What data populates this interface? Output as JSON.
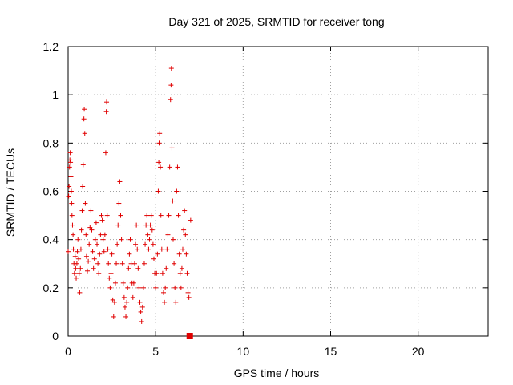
{
  "chart_data": {
    "type": "scatter",
    "title": "Day 321 of 2025, SRMTID for receiver tong",
    "xlabel": "GPS time / hours",
    "ylabel": "SRMTID / TECUs",
    "xlim": [
      0,
      24
    ],
    "ylim": [
      0,
      1.2
    ],
    "xticks": [
      0,
      5,
      10,
      15,
      20
    ],
    "yticks": [
      0,
      0.2,
      0.4,
      0.6,
      0.8,
      1,
      1.2
    ],
    "xtick_labels": [
      "0",
      "5",
      "10",
      "15",
      "20"
    ],
    "ytick_labels": [
      "0",
      "0.2",
      "0.4",
      "0.6",
      "0.8",
      "1",
      "1.2"
    ],
    "grid": true,
    "marker": "+",
    "color": "#e00000",
    "end_marker": {
      "x": 6.95,
      "y": 0.0,
      "shape": "square"
    },
    "series": [
      {
        "name": "SRMTID",
        "points": [
          [
            0.0,
            0.35
          ],
          [
            0.03,
            0.58
          ],
          [
            0.05,
            0.62
          ],
          [
            0.08,
            0.7
          ],
          [
            0.1,
            0.73
          ],
          [
            0.12,
            0.76
          ],
          [
            0.14,
            0.72
          ],
          [
            0.16,
            0.66
          ],
          [
            0.18,
            0.6
          ],
          [
            0.2,
            0.55
          ],
          [
            0.22,
            0.5
          ],
          [
            0.25,
            0.46
          ],
          [
            0.28,
            0.42
          ],
          [
            0.3,
            0.36
          ],
          [
            0.33,
            0.3
          ],
          [
            0.36,
            0.26
          ],
          [
            0.4,
            0.33
          ],
          [
            0.43,
            0.28
          ],
          [
            0.46,
            0.24
          ],
          [
            0.5,
            0.3
          ],
          [
            0.53,
            0.35
          ],
          [
            0.56,
            0.4
          ],
          [
            0.6,
            0.32
          ],
          [
            0.63,
            0.26
          ],
          [
            0.66,
            0.18
          ],
          [
            0.7,
            0.28
          ],
          [
            0.73,
            0.36
          ],
          [
            0.76,
            0.44
          ],
          [
            0.8,
            0.52
          ],
          [
            0.83,
            0.62
          ],
          [
            0.86,
            0.71
          ],
          [
            0.9,
            0.9
          ],
          [
            0.92,
            0.94
          ],
          [
            0.95,
            0.84
          ],
          [
            0.98,
            0.55
          ],
          [
            1.02,
            0.42
          ],
          [
            1.05,
            0.33
          ],
          [
            1.1,
            0.27
          ],
          [
            1.15,
            0.31
          ],
          [
            1.2,
            0.38
          ],
          [
            1.25,
            0.45
          ],
          [
            1.3,
            0.52
          ],
          [
            1.35,
            0.44
          ],
          [
            1.4,
            0.35
          ],
          [
            1.45,
            0.28
          ],
          [
            1.5,
            0.32
          ],
          [
            1.55,
            0.4
          ],
          [
            1.6,
            0.47
          ],
          [
            1.65,
            0.38
          ],
          [
            1.7,
            0.3
          ],
          [
            1.75,
            0.26
          ],
          [
            1.8,
            0.34
          ],
          [
            1.85,
            0.42
          ],
          [
            1.9,
            0.5
          ],
          [
            1.95,
            0.48
          ],
          [
            2.0,
            0.4
          ],
          [
            2.05,
            0.35
          ],
          [
            2.1,
            0.42
          ],
          [
            2.15,
            0.76
          ],
          [
            2.18,
            0.93
          ],
          [
            2.2,
            0.97
          ],
          [
            2.23,
            0.5
          ],
          [
            2.27,
            0.36
          ],
          [
            2.3,
            0.3
          ],
          [
            2.35,
            0.24
          ],
          [
            2.4,
            0.2
          ],
          [
            2.45,
            0.26
          ],
          [
            2.5,
            0.34
          ],
          [
            2.55,
            0.15
          ],
          [
            2.6,
            0.08
          ],
          [
            2.65,
            0.14
          ],
          [
            2.7,
            0.22
          ],
          [
            2.75,
            0.3
          ],
          [
            2.8,
            0.38
          ],
          [
            2.85,
            0.46
          ],
          [
            2.9,
            0.55
          ],
          [
            2.95,
            0.64
          ],
          [
            3.0,
            0.5
          ],
          [
            3.05,
            0.4
          ],
          [
            3.1,
            0.3
          ],
          [
            3.15,
            0.22
          ],
          [
            3.2,
            0.16
          ],
          [
            3.25,
            0.12
          ],
          [
            3.3,
            0.08
          ],
          [
            3.35,
            0.14
          ],
          [
            3.4,
            0.2
          ],
          [
            3.45,
            0.28
          ],
          [
            3.5,
            0.34
          ],
          [
            3.55,
            0.4
          ],
          [
            3.6,
            0.3
          ],
          [
            3.65,
            0.22
          ],
          [
            3.7,
            0.16
          ],
          [
            3.75,
            0.22
          ],
          [
            3.8,
            0.3
          ],
          [
            3.85,
            0.38
          ],
          [
            3.9,
            0.46
          ],
          [
            3.95,
            0.36
          ],
          [
            4.0,
            0.28
          ],
          [
            4.05,
            0.2
          ],
          [
            4.1,
            0.14
          ],
          [
            4.15,
            0.1
          ],
          [
            4.2,
            0.06
          ],
          [
            4.25,
            0.12
          ],
          [
            4.3,
            0.2
          ],
          [
            4.35,
            0.3
          ],
          [
            4.4,
            0.38
          ],
          [
            4.45,
            0.46
          ],
          [
            4.5,
            0.5
          ],
          [
            4.55,
            0.42
          ],
          [
            4.6,
            0.36
          ],
          [
            4.65,
            0.4
          ],
          [
            4.7,
            0.46
          ],
          [
            4.75,
            0.5
          ],
          [
            4.8,
            0.44
          ],
          [
            4.85,
            0.38
          ],
          [
            4.9,
            0.32
          ],
          [
            4.95,
            0.26
          ],
          [
            5.0,
            0.2
          ],
          [
            5.05,
            0.26
          ],
          [
            5.1,
            0.34
          ],
          [
            5.15,
            0.6
          ],
          [
            5.18,
            0.72
          ],
          [
            5.2,
            0.8
          ],
          [
            5.23,
            0.84
          ],
          [
            5.27,
            0.7
          ],
          [
            5.3,
            0.5
          ],
          [
            5.35,
            0.36
          ],
          [
            5.4,
            0.26
          ],
          [
            5.45,
            0.18
          ],
          [
            5.5,
            0.14
          ],
          [
            5.55,
            0.2
          ],
          [
            5.6,
            0.28
          ],
          [
            5.65,
            0.36
          ],
          [
            5.7,
            0.42
          ],
          [
            5.75,
            0.5
          ],
          [
            5.8,
            0.7
          ],
          [
            5.85,
            0.98
          ],
          [
            5.88,
            1.04
          ],
          [
            5.9,
            1.11
          ],
          [
            5.93,
            0.78
          ],
          [
            5.97,
            0.56
          ],
          [
            6.0,
            0.4
          ],
          [
            6.05,
            0.3
          ],
          [
            6.1,
            0.2
          ],
          [
            6.15,
            0.14
          ],
          [
            6.2,
            0.6
          ],
          [
            6.25,
            0.7
          ],
          [
            6.3,
            0.5
          ],
          [
            6.35,
            0.34
          ],
          [
            6.4,
            0.26
          ],
          [
            6.45,
            0.2
          ],
          [
            6.5,
            0.28
          ],
          [
            6.55,
            0.36
          ],
          [
            6.6,
            0.44
          ],
          [
            6.65,
            0.52
          ],
          [
            6.7,
            0.42
          ],
          [
            6.75,
            0.34
          ],
          [
            6.8,
            0.26
          ],
          [
            6.85,
            0.18
          ],
          [
            6.9,
            0.16
          ],
          [
            7.0,
            0.48
          ]
        ]
      }
    ]
  }
}
